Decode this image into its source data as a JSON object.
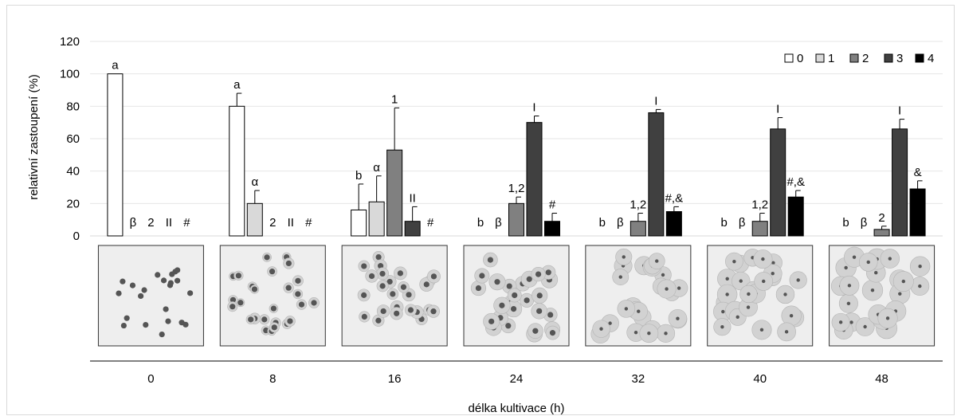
{
  "chart_data": {
    "type": "bar",
    "categories": [
      "0",
      "8",
      "16",
      "24",
      "32",
      "40",
      "48"
    ],
    "xlabel": "délka kultivace (h)",
    "ylabel": "relativní zastoupení (%)",
    "ylim": [
      0,
      120
    ],
    "yticks": [
      0,
      20,
      40,
      60,
      80,
      100,
      120
    ],
    "grid": true,
    "legend_position": "top-right",
    "series": [
      {
        "name": "0",
        "color": "#ffffff",
        "values": [
          100,
          80,
          16,
          0,
          0,
          0,
          0
        ],
        "errors": [
          0,
          8,
          16,
          0,
          0,
          0,
          0
        ],
        "labels": [
          "a",
          "a",
          "b",
          "b",
          "b",
          "b",
          "b"
        ]
      },
      {
        "name": "1",
        "color": "#d9d9d9",
        "values": [
          0,
          20,
          21,
          0,
          0,
          0,
          0
        ],
        "errors": [
          0,
          8,
          16,
          0,
          0,
          0,
          0
        ],
        "labels": [
          "β",
          "α",
          "α",
          "β",
          "β",
          "β",
          "β"
        ]
      },
      {
        "name": "2",
        "color": "#808080",
        "values": [
          0,
          0,
          53,
          20,
          9,
          9,
          4
        ],
        "errors": [
          0,
          0,
          26,
          4,
          5,
          5,
          2
        ],
        "labels": [
          "2",
          "2",
          "1",
          "1,2",
          "1,2",
          "1,2",
          "2"
        ]
      },
      {
        "name": "3",
        "color": "#404040",
        "values": [
          0,
          0,
          9,
          70,
          76,
          66,
          66
        ],
        "errors": [
          0,
          0,
          9,
          4,
          2,
          7,
          6
        ],
        "labels": [
          "II",
          "II",
          "II",
          "I",
          "I",
          "I",
          "I"
        ]
      },
      {
        "name": "4",
        "color": "#000000",
        "values": [
          0,
          0,
          0,
          9,
          15,
          24,
          29
        ],
        "errors": [
          0,
          0,
          0,
          5,
          3,
          4,
          5
        ],
        "labels": [
          "#",
          "#",
          "#",
          "#",
          "#,&",
          "#,&",
          "&"
        ]
      }
    ],
    "photos": [
      {
        "label": "0",
        "cells": 22,
        "halo": 0.0
      },
      {
        "label": "8",
        "cells": 26,
        "halo": 0.15
      },
      {
        "label": "16",
        "cells": 26,
        "halo": 0.45
      },
      {
        "label": "24",
        "cells": 26,
        "halo": 0.75
      },
      {
        "label": "32",
        "cells": 26,
        "halo": 1.0
      },
      {
        "label": "40",
        "cells": 26,
        "halo": 1.1
      },
      {
        "label": "48",
        "cells": 24,
        "halo": 1.2
      }
    ]
  }
}
